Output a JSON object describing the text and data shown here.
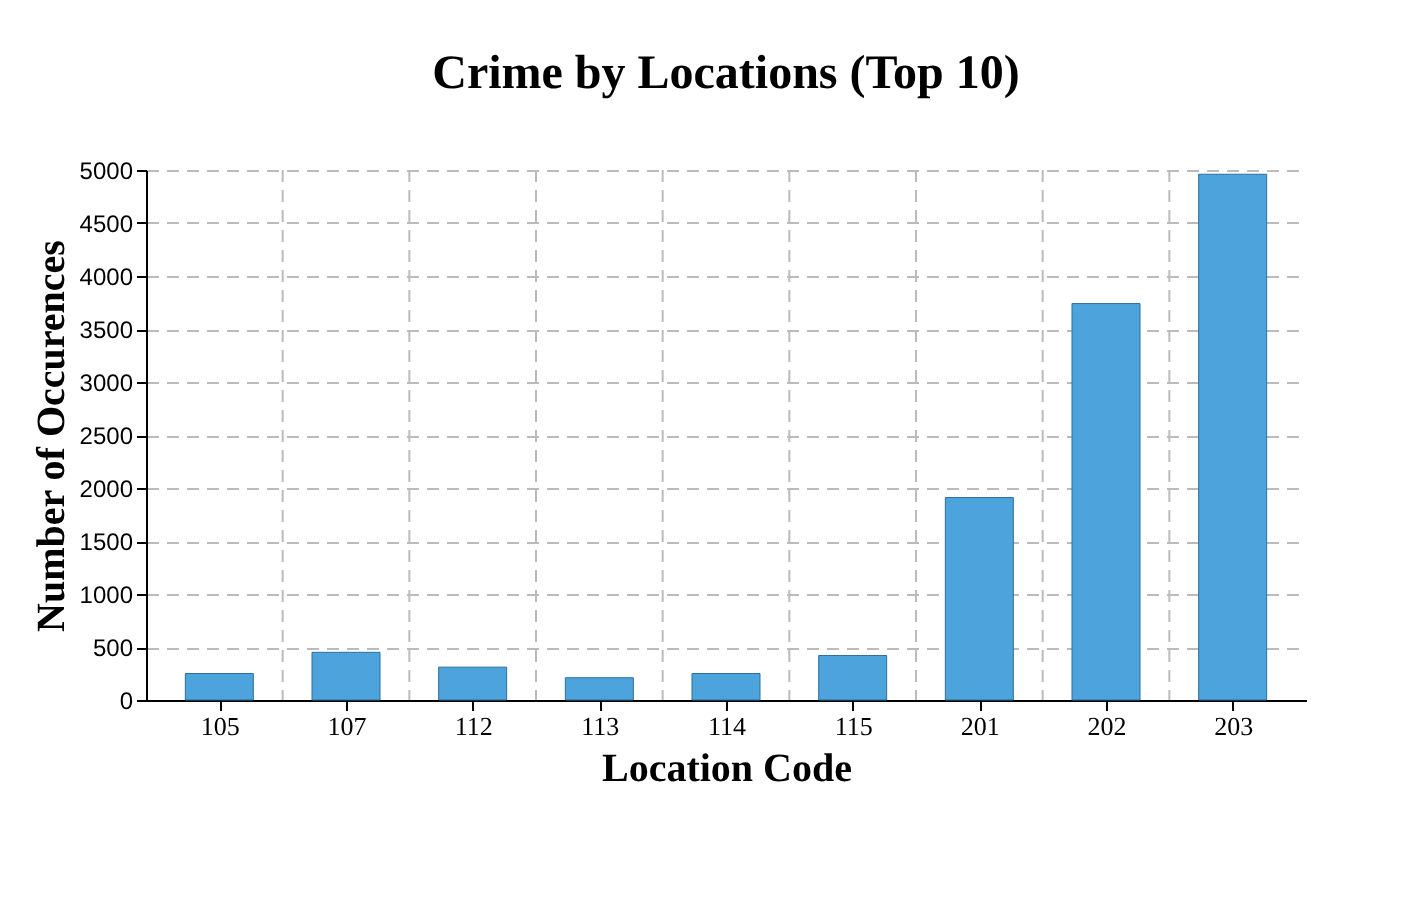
{
  "chart_data": {
    "type": "bar",
    "title": "Crime by Locations (Top 10)",
    "xlabel": "Location Code",
    "ylabel": "Number of Occurences",
    "categories": [
      "105",
      "107",
      "112",
      "113",
      "114",
      "115",
      "201",
      "202",
      "203"
    ],
    "values": [
      250,
      450,
      310,
      210,
      250,
      420,
      1910,
      3740,
      4960
    ],
    "color": "#4da3dc",
    "ylim": [
      0,
      5000
    ],
    "yticks": [
      0,
      500,
      1000,
      1500,
      2000,
      2500,
      3000,
      3500,
      4000,
      4500,
      5000
    ],
    "grid": true
  }
}
